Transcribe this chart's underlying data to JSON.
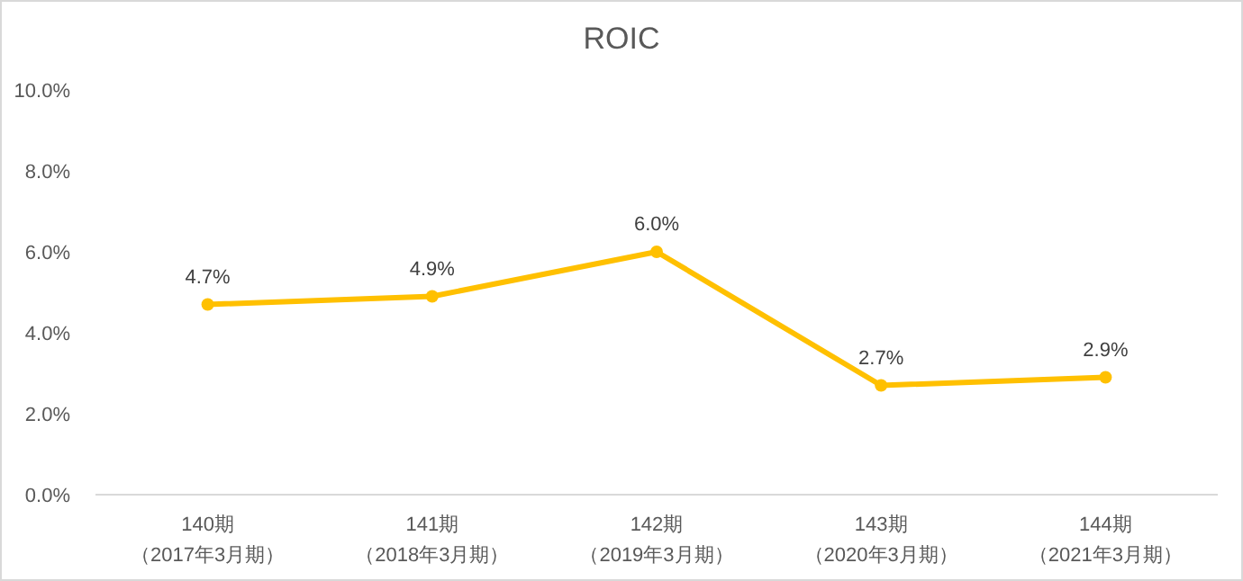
{
  "chart_data": {
    "type": "line",
    "title": "ROIC",
    "categories": [
      "140期（2017年3月期）",
      "141期（2018年3月期）",
      "142期（2019年3月期）",
      "143期（2020年3月期）",
      "144期（2021年3月期）"
    ],
    "series": [
      {
        "color": "#ffc000",
        "values": [
          4.7,
          4.9,
          6.0,
          2.7,
          2.9
        ],
        "value_labels": [
          "4.7%",
          "4.9%",
          "6.0%",
          "2.7%",
          "2.9%"
        ]
      }
    ],
    "ylim": [
      0,
      10
    ],
    "yticks": [
      {
        "value": 0,
        "label": "0.0%"
      },
      {
        "value": 2,
        "label": "2.0%"
      },
      {
        "value": 4,
        "label": "4.0%"
      },
      {
        "value": 6,
        "label": "6.0%"
      },
      {
        "value": 8,
        "label": "8.0%"
      },
      {
        "value": 10,
        "label": "10.0%"
      }
    ],
    "marker": "circle",
    "line_style": "solid",
    "grid": false
  }
}
